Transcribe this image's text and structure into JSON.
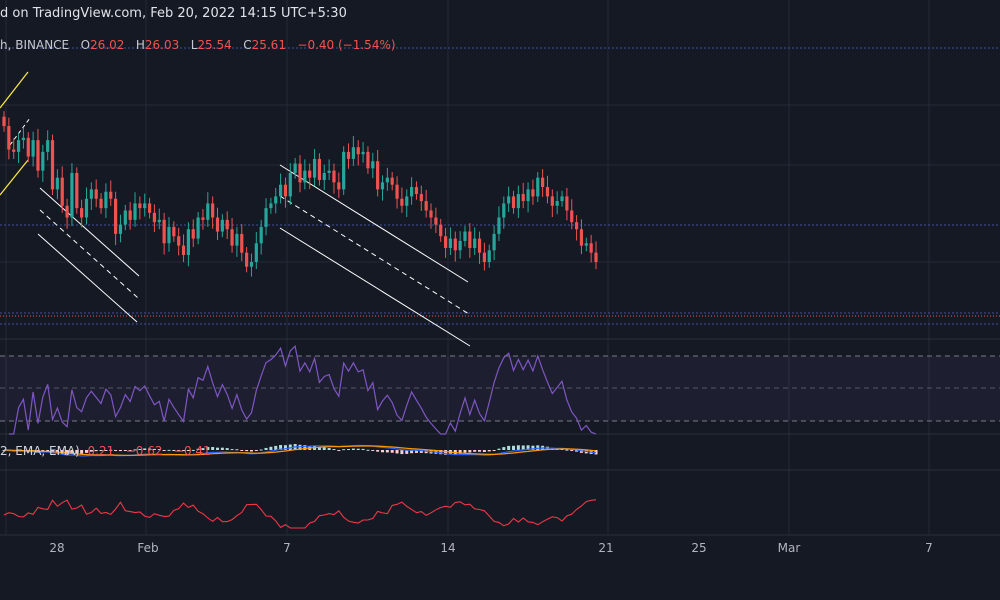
{
  "header": {
    "published_text": "d on TradingView.com, Feb 20, 2022 14:15 UTC+5:30",
    "symbol_fragment": "h, BINANCE",
    "o_label": "O",
    "o_value": "26.02",
    "h_label": "H",
    "h_value": "26.03",
    "l_label": "L",
    "l_value": "25.54",
    "c_label": "C",
    "c_value": "25.61",
    "change": "−0.40 (−1.54%)"
  },
  "macd_legend": {
    "prefix": "2, EMA, EMA)",
    "v1": "0.21",
    "v2": "−0.62",
    "v3": "−0.41"
  },
  "colors": {
    "background": "#151924",
    "up": "#26a69a",
    "down": "#ef5350",
    "rsi": "#7e57c2",
    "macd": "#2962ff",
    "signal": "#ff9800",
    "cmf": "#f23645",
    "channel": "#ffffff",
    "trend": "#ffeb3b"
  },
  "chart_data": {
    "type": "candlestick",
    "x_ticks": [
      "28",
      "Feb",
      "7",
      "14",
      "21",
      "25",
      "Mar",
      "7"
    ],
    "price_closes": [
      26.55,
      26.05,
      26.0,
      26.25,
      26.3,
      25.9,
      26.25,
      25.6,
      26.0,
      26.25,
      25.2,
      25.45,
      24.85,
      24.6,
      25.55,
      24.8,
      24.6,
      25.0,
      25.2,
      25.0,
      24.8,
      25.15,
      25.0,
      24.25,
      24.45,
      24.75,
      24.55,
      24.9,
      24.8,
      24.9,
      24.7,
      24.5,
      24.55,
      24.05,
      24.4,
      24.2,
      24.0,
      23.8,
      24.35,
      24.15,
      24.6,
      24.55,
      24.9,
      24.6,
      24.3,
      24.55,
      24.35,
      24.0,
      24.25,
      23.85,
      23.55,
      23.65,
      24.05,
      24.4,
      24.8,
      24.9,
      25.05,
      25.3,
      25.05,
      25.55,
      25.75,
      25.35,
      25.6,
      25.45,
      25.85,
      25.4,
      25.55,
      25.6,
      25.35,
      25.2,
      26.0,
      25.85,
      26.1,
      25.95,
      26.0,
      25.65,
      25.8,
      25.2,
      25.35,
      25.45,
      25.3,
      25.0,
      24.85,
      25.05,
      25.25,
      25.1,
      24.95,
      24.75,
      24.6,
      24.45,
      24.2,
      23.95,
      24.15,
      23.9,
      24.1,
      24.3,
      23.95,
      24.15,
      23.85,
      23.65,
      23.9,
      24.25,
      24.6,
      24.9,
      25.05,
      24.8,
      25.1,
      24.95,
      25.2,
      25.05,
      25.45,
      25.25,
      25.05,
      24.85,
      24.95,
      25.05,
      24.75,
      24.5,
      24.35,
      24.0,
      24.05,
      23.85,
      23.65
    ],
    "y_range": [
      22.2,
      28.6
    ],
    "horizontal_levels": [
      25.3,
      23.7,
      23.6
    ],
    "rsi_levels": [
      70,
      50,
      30
    ],
    "indicators": [
      "RSI",
      "MACD",
      "CMF"
    ]
  }
}
